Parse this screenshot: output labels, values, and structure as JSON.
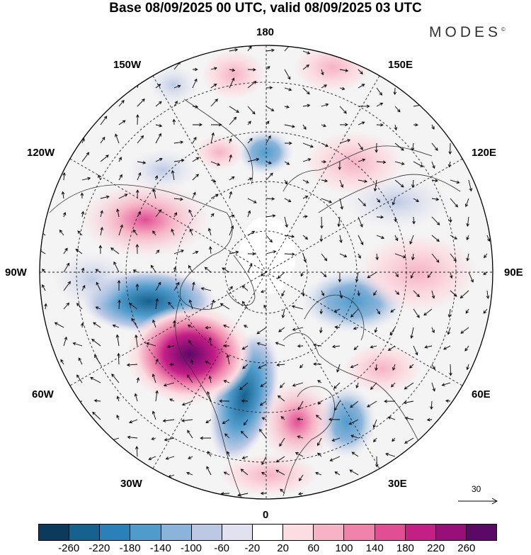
{
  "header": {
    "title": "Base 08/09/2025 00 UTC, valid 08/09/2025 03 UTC"
  },
  "brand": {
    "name": "MODES",
    "mark": "©"
  },
  "map": {
    "projection": "north-polar-stereographic",
    "longitude_labels": {
      "top": "180",
      "top_right": "150E",
      "upper_right": "120E",
      "right": "90E",
      "lower_right": "60E",
      "bottom_right": "30E",
      "bottom": "0",
      "bottom_left": "30W",
      "lower_left": "60W",
      "left": "90W",
      "upper_left": "120W",
      "top_left": "150W"
    },
    "reference_vector": {
      "value": "30"
    }
  },
  "colorbar": {
    "colors": [
      "#0b3a5c",
      "#15628f",
      "#2a80b8",
      "#4f9ccc",
      "#8ab4d9",
      "#bcc9e4",
      "#e2e1f0",
      "#ffffff",
      "#fbdde2",
      "#f6b3c5",
      "#ef83aa",
      "#e04e93",
      "#c41f85",
      "#97107a",
      "#5a0a66"
    ],
    "tick_labels": [
      "-260",
      "-220",
      "-180",
      "-140",
      "-100",
      "-60",
      "-20",
      "20",
      "60",
      "100",
      "140",
      "180",
      "220",
      "260"
    ]
  }
}
